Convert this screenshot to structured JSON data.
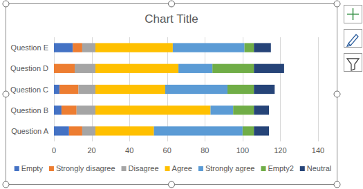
{
  "chart_data": {
    "type": "bar",
    "title": "Chart Title",
    "orientation": "horizontal",
    "stacked": true,
    "grid": true,
    "legend": "bottom",
    "categories": [
      "Question A",
      "Question B",
      "Question C",
      "Question D",
      "Question E"
    ],
    "xlim": [
      0,
      140
    ],
    "xticks": [
      0,
      20,
      40,
      60,
      80,
      100,
      120,
      140
    ],
    "series": [
      {
        "name": "Empty",
        "color": "#4472c4",
        "values": [
          8,
          4,
          3,
          0,
          10
        ]
      },
      {
        "name": "Strongly disagree",
        "color": "#ed7d31",
        "values": [
          7,
          8,
          10,
          11,
          5
        ]
      },
      {
        "name": "Disagree",
        "color": "#a5a5a5",
        "values": [
          7,
          10,
          9,
          11,
          7
        ]
      },
      {
        "name": "Agree",
        "color": "#ffc000",
        "values": [
          31,
          61,
          37,
          44,
          41
        ]
      },
      {
        "name": "Strongly agree",
        "color": "#5b9bd5",
        "values": [
          47,
          12,
          33,
          18,
          38
        ]
      },
      {
        "name": "Empty2",
        "color": "#70ad47",
        "values": [
          6,
          11,
          14,
          22,
          5
        ]
      },
      {
        "name": "Neutral",
        "color": "#264478",
        "values": [
          8,
          8,
          11,
          16,
          9
        ]
      }
    ]
  }
}
